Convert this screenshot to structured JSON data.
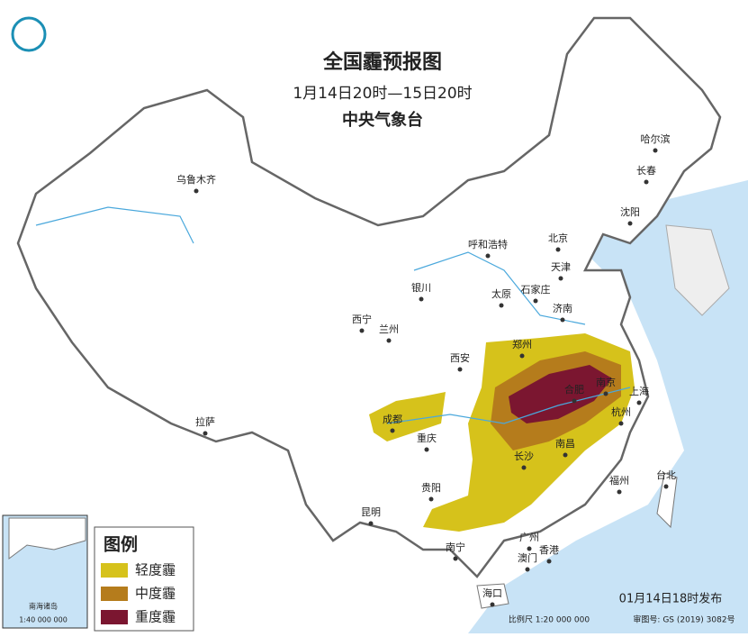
{
  "header": {
    "title": "全国霾预报图",
    "subtitle": "1月14日20时—15日20时",
    "issuer": "中央气象台"
  },
  "cities": [
    {
      "label": "乌鲁木齐"
    },
    {
      "label": "哈尔滨"
    },
    {
      "label": "长春"
    },
    {
      "label": "沈阳"
    },
    {
      "label": "呼和浩特"
    },
    {
      "label": "北京"
    },
    {
      "label": "天津"
    },
    {
      "label": "银川"
    },
    {
      "label": "太原"
    },
    {
      "label": "石家庄"
    },
    {
      "label": "西宁"
    },
    {
      "label": "兰州"
    },
    {
      "label": "济南"
    },
    {
      "label": "郑州"
    },
    {
      "label": "西安"
    },
    {
      "label": "合肥"
    },
    {
      "label": "南京"
    },
    {
      "label": "上海"
    },
    {
      "label": "成都"
    },
    {
      "label": "杭州"
    },
    {
      "label": "重庆"
    },
    {
      "label": "拉萨"
    },
    {
      "label": "南昌"
    },
    {
      "label": "长沙"
    },
    {
      "label": "福州"
    },
    {
      "label": "台北"
    },
    {
      "label": "贵阳"
    },
    {
      "label": "昆明"
    },
    {
      "label": "广州"
    },
    {
      "label": "南宁"
    },
    {
      "label": "香港"
    },
    {
      "label": "澳门"
    },
    {
      "label": "海口"
    }
  ],
  "legend": {
    "title": "图例",
    "items": [
      {
        "label": "轻度霾"
      },
      {
        "label": "中度霾"
      },
      {
        "label": "重度霾"
      }
    ]
  },
  "inset": {
    "label": "南海诸岛",
    "scale": "1:40 000 000"
  },
  "footer": {
    "issued": "01月14日18时发布",
    "scale": "比例尺 1:20 000 000",
    "review_number": "审图号: GS (2019) 3082号"
  }
}
